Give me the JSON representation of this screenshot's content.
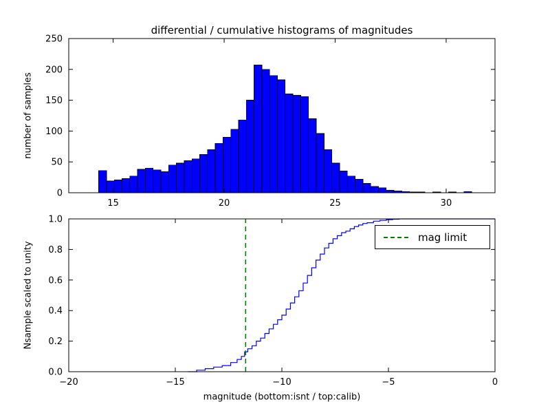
{
  "figure": {
    "background": "#ffffff"
  },
  "chart_data": [
    {
      "type": "bar",
      "title": "differential / cumulative histograms of magnitudes",
      "ylabel": "number of samples",
      "bar_color": "#0000ff",
      "bar_edge_color": "#000000",
      "bin_start": 14.35,
      "bin_width": 0.35,
      "counts": [
        36,
        19,
        21,
        23,
        27,
        38,
        40,
        37,
        34,
        45,
        48,
        52,
        55,
        62,
        70,
        80,
        90,
        103,
        118,
        150,
        207,
        200,
        190,
        183,
        160,
        158,
        156,
        120,
        96,
        70,
        48,
        35,
        27,
        22,
        15,
        10,
        8,
        4,
        3,
        2,
        1,
        1,
        0,
        1,
        0,
        1,
        0,
        2
      ],
      "xlim": [
        13.0,
        32.2
      ],
      "ylim": [
        0,
        250
      ],
      "xticks": [
        15,
        20,
        25,
        30
      ],
      "xtick_labels": [
        "15",
        "20",
        "25",
        "30"
      ],
      "yticks": [
        0,
        50,
        100,
        150,
        200,
        250
      ],
      "ytick_labels": [
        "0",
        "50",
        "100",
        "150",
        "200",
        "250"
      ],
      "grid": false
    },
    {
      "type": "line",
      "ylabel": "Nsample scaled to unity",
      "xlabel": "magnitude (bottom:isnt / top:calib)",
      "line_color": "#0000ff",
      "line_style": "step",
      "legend_label": "mag limit",
      "legend_position": "upper right",
      "vline": {
        "x": -11.7,
        "color": "#008000",
        "style": "dashed"
      },
      "xlim": [
        -20,
        0
      ],
      "ylim": [
        0,
        1
      ],
      "xticks": [
        -20,
        -15,
        -10,
        -5,
        0
      ],
      "xtick_labels": [
        "−20",
        "−15",
        "−10",
        "−5",
        "0"
      ],
      "yticks": [
        0,
        0.2,
        0.4,
        0.6,
        0.8,
        1.0
      ],
      "ytick_labels": [
        "0.0",
        "0.2",
        "0.4",
        "0.6",
        "0.8",
        "1.0"
      ],
      "step_points": [
        [
          -14.4,
          0.0
        ],
        [
          -14.0,
          0.01
        ],
        [
          -13.6,
          0.02
        ],
        [
          -13.2,
          0.03
        ],
        [
          -12.8,
          0.04
        ],
        [
          -12.4,
          0.06
        ],
        [
          -12.1,
          0.08
        ],
        [
          -11.9,
          0.1
        ],
        [
          -11.75,
          0.13
        ],
        [
          -11.6,
          0.15
        ],
        [
          -11.4,
          0.17
        ],
        [
          -11.2,
          0.2
        ],
        [
          -11.0,
          0.22
        ],
        [
          -10.8,
          0.25
        ],
        [
          -10.6,
          0.28
        ],
        [
          -10.4,
          0.31
        ],
        [
          -10.2,
          0.34
        ],
        [
          -10.0,
          0.37
        ],
        [
          -9.8,
          0.41
        ],
        [
          -9.6,
          0.45
        ],
        [
          -9.4,
          0.49
        ],
        [
          -9.2,
          0.53
        ],
        [
          -9.0,
          0.58
        ],
        [
          -8.8,
          0.63
        ],
        [
          -8.6,
          0.68
        ],
        [
          -8.4,
          0.73
        ],
        [
          -8.2,
          0.77
        ],
        [
          -8.0,
          0.81
        ],
        [
          -7.8,
          0.84
        ],
        [
          -7.6,
          0.87
        ],
        [
          -7.4,
          0.89
        ],
        [
          -7.2,
          0.91
        ],
        [
          -7.0,
          0.92
        ],
        [
          -6.8,
          0.935
        ],
        [
          -6.6,
          0.95
        ],
        [
          -6.4,
          0.96
        ],
        [
          -6.2,
          0.97
        ],
        [
          -6.0,
          0.975
        ],
        [
          -5.7,
          0.985
        ],
        [
          -5.4,
          0.99
        ],
        [
          -5.1,
          0.995
        ],
        [
          -4.8,
          0.998
        ],
        [
          -4.5,
          1.0
        ],
        [
          0.0,
          1.0
        ]
      ],
      "grid": false
    }
  ]
}
